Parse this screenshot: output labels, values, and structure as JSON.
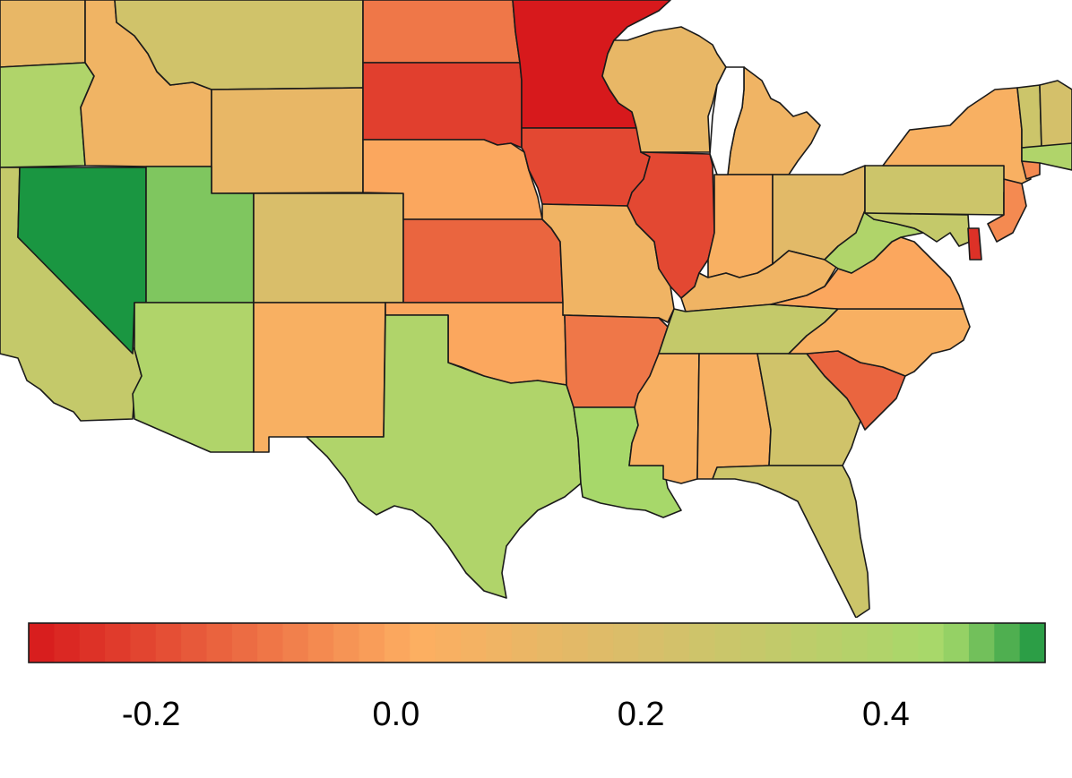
{
  "map": {
    "region": "contiguous United States (partial view)",
    "color_scale": {
      "low_color": "#d7191c",
      "mid_color": "#fdae61",
      "high_color": "#1a9641",
      "min": -0.3,
      "max": 0.53
    },
    "states": [
      {
        "name": "Washington",
        "value": 0.12
      },
      {
        "name": "Oregon",
        "value": 0.4
      },
      {
        "name": "California",
        "value": 0.3
      },
      {
        "name": "Nevada",
        "value": 0.53
      },
      {
        "name": "Idaho",
        "value": 0.08
      },
      {
        "name": "Montana",
        "value": 0.24
      },
      {
        "name": "Wyoming",
        "value": 0.12
      },
      {
        "name": "Utah",
        "value": 0.47
      },
      {
        "name": "Colorado",
        "value": 0.2
      },
      {
        "name": "Arizona",
        "value": 0.4
      },
      {
        "name": "New Mexico",
        "value": 0.04
      },
      {
        "name": "North Dakota",
        "value": -0.1
      },
      {
        "name": "South Dakota",
        "value": -0.22
      },
      {
        "name": "Nebraska",
        "value": 0.0
      },
      {
        "name": "Kansas",
        "value": -0.14
      },
      {
        "name": "Oklahoma",
        "value": 0.0
      },
      {
        "name": "Texas",
        "value": 0.4
      },
      {
        "name": "Minnesota",
        "value": -0.3
      },
      {
        "name": "Iowa",
        "value": -0.2
      },
      {
        "name": "Missouri",
        "value": 0.08
      },
      {
        "name": "Arkansas",
        "value": -0.1
      },
      {
        "name": "Louisiana",
        "value": 0.44
      },
      {
        "name": "Wisconsin",
        "value": 0.12
      },
      {
        "name": "Illinois",
        "value": -0.2
      },
      {
        "name": "Michigan",
        "value": 0.08
      },
      {
        "name": "Indiana",
        "value": 0.04
      },
      {
        "name": "Ohio",
        "value": 0.15
      },
      {
        "name": "Kentucky",
        "value": 0.08
      },
      {
        "name": "Tennessee",
        "value": 0.3
      },
      {
        "name": "Mississippi",
        "value": 0.04
      },
      {
        "name": "Alabama",
        "value": 0.04
      },
      {
        "name": "Georgia",
        "value": 0.24
      },
      {
        "name": "Florida",
        "value": 0.26
      },
      {
        "name": "South Carolina",
        "value": -0.14
      },
      {
        "name": "North Carolina",
        "value": 0.04
      },
      {
        "name": "Virginia",
        "value": 0.0
      },
      {
        "name": "West Virginia",
        "value": 0.4
      },
      {
        "name": "Pennsylvania",
        "value": 0.26
      },
      {
        "name": "New York",
        "value": 0.04
      },
      {
        "name": "New Jersey",
        "value": -0.06
      },
      {
        "name": "Delaware",
        "value": -0.25
      },
      {
        "name": "Maryland",
        "value": 0.3
      },
      {
        "name": "Vermont",
        "value": 0.26
      },
      {
        "name": "New Hampshire",
        "value": 0.22
      },
      {
        "name": "Massachusetts",
        "value": 0.4
      },
      {
        "name": "Connecticut",
        "value": -0.06
      }
    ]
  },
  "legend": {
    "min": -0.3,
    "max": 0.53,
    "ticks": [
      {
        "value": -0.2,
        "label": "-0.2"
      },
      {
        "value": 0.0,
        "label": "0.0"
      },
      {
        "value": 0.2,
        "label": "0.2"
      },
      {
        "value": 0.4,
        "label": "0.4"
      }
    ]
  }
}
